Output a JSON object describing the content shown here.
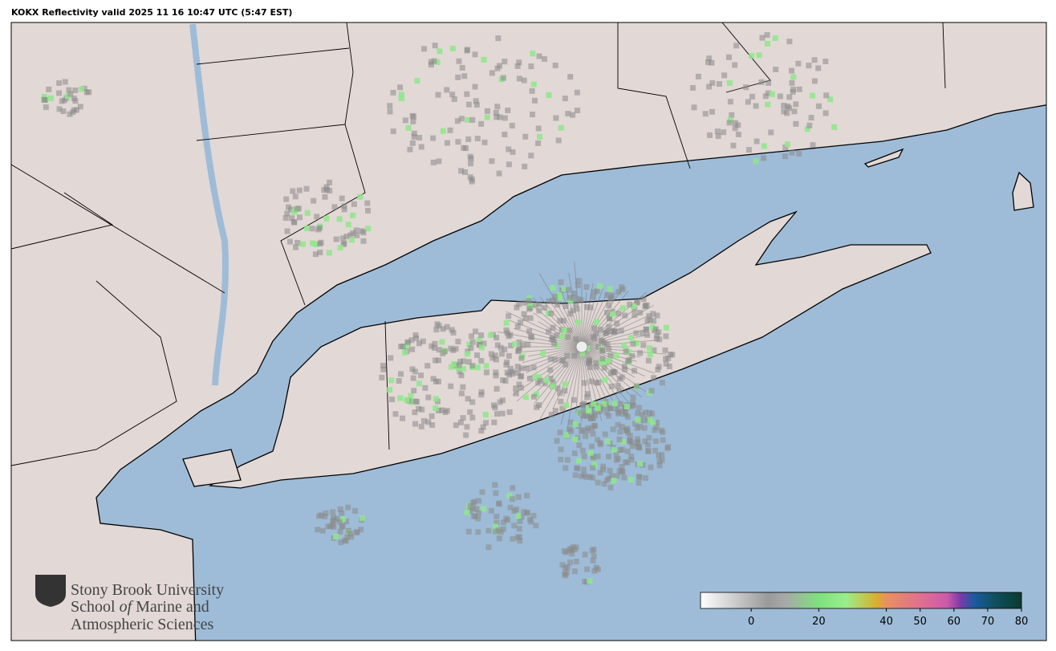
{
  "title": "KOKX Reflectivity valid 2025 11 16 10:47 UTC (5:47 EST)",
  "logo": {
    "line1": "Stony Brook University",
    "line2_start": "School",
    "line2_italic": "of",
    "line2_end": "Marine and",
    "line3": "Atmospheric Sciences"
  },
  "colorbar": {
    "lim": [
      -15,
      80
    ],
    "ticks": [
      0,
      20,
      40,
      50,
      60,
      70,
      80
    ],
    "stops": [
      {
        "value": -15,
        "color": "#ffffff"
      },
      {
        "value": 5,
        "color": "#9a9a9a"
      },
      {
        "value": 10,
        "color": "#a8a8a8"
      },
      {
        "value": 20,
        "color": "#7ee07e"
      },
      {
        "value": 28,
        "color": "#9aee8a"
      },
      {
        "value": 37,
        "color": "#d8b030"
      },
      {
        "value": 40,
        "color": "#e89060"
      },
      {
        "value": 50,
        "color": "#e07090"
      },
      {
        "value": 58,
        "color": "#cc5aaa"
      },
      {
        "value": 62,
        "color": "#7a3aa8"
      },
      {
        "value": 66,
        "color": "#1a5aa0"
      },
      {
        "value": 72,
        "color": "#105060"
      },
      {
        "value": 80,
        "color": "#0a3a30"
      }
    ]
  }
}
